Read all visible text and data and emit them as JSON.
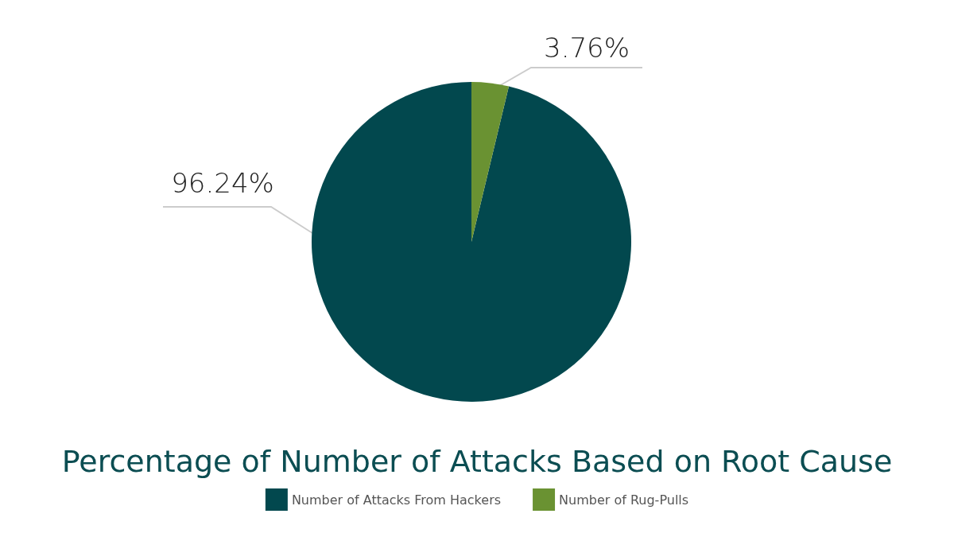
{
  "chart_data": {
    "type": "pie",
    "title": "Percentage of Number of Attacks Based on Root Cause",
    "categories": [
      "Number of Attacks From Hackers",
      "Number of Rug-Pulls"
    ],
    "values": [
      96.24,
      3.76
    ],
    "colors": [
      "#02484e",
      "#6a9232"
    ],
    "value_labels": [
      "96.24%",
      "3.76%"
    ],
    "legend": "bottom"
  }
}
